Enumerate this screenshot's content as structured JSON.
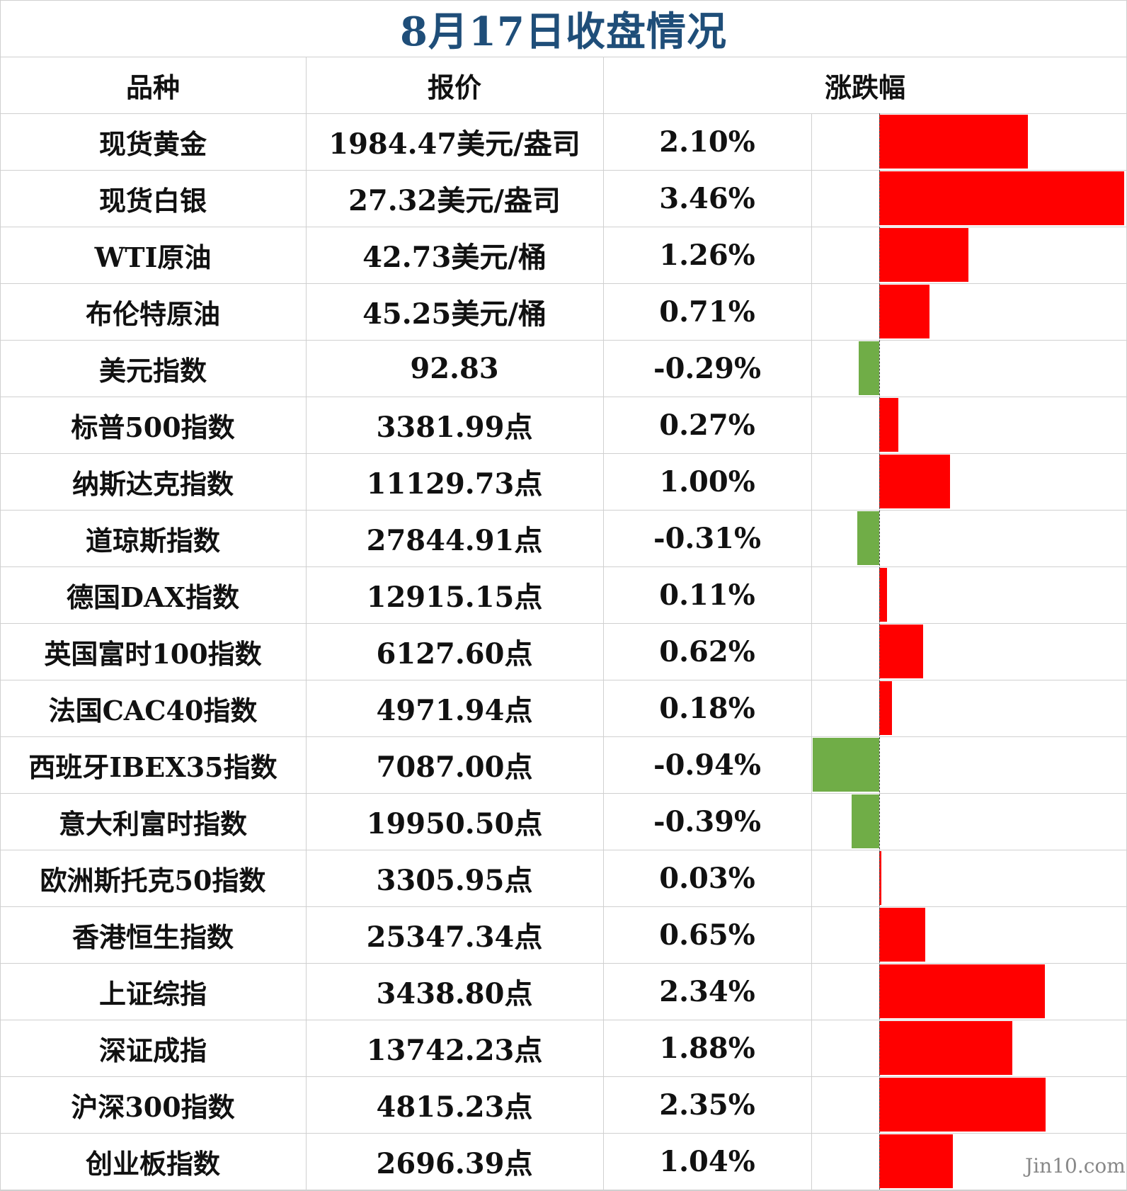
{
  "title": "8月17日收盘情况",
  "headers": {
    "variety": "品种",
    "quote": "报价",
    "change": "涨跌幅"
  },
  "colors": {
    "up": "#ff0000",
    "down": "#70ad47",
    "title": "#1f4e79"
  },
  "watermark": "Jin10.com",
  "rows": [
    {
      "name": "现货黄金",
      "quote": "1984.47美元/盎司",
      "change_text": "2.10%",
      "change": 2.1
    },
    {
      "name": "现货白银",
      "quote": "27.32美元/盎司",
      "change_text": "3.46%",
      "change": 3.46
    },
    {
      "name": "WTI原油",
      "quote": "42.73美元/桶",
      "change_text": "1.26%",
      "change": 1.26
    },
    {
      "name": "布伦特原油",
      "quote": "45.25美元/桶",
      "change_text": "0.71%",
      "change": 0.71
    },
    {
      "name": "美元指数",
      "quote": "92.83",
      "change_text": "-0.29%",
      "change": -0.29
    },
    {
      "name": "标普500指数",
      "quote": "3381.99点",
      "change_text": "0.27%",
      "change": 0.27
    },
    {
      "name": "纳斯达克指数",
      "quote": "11129.73点",
      "change_text": "1.00%",
      "change": 1.0
    },
    {
      "name": "道琼斯指数",
      "quote": "27844.91点",
      "change_text": "-0.31%",
      "change": -0.31
    },
    {
      "name": "德国DAX指数",
      "quote": "12915.15点",
      "change_text": "0.11%",
      "change": 0.11
    },
    {
      "name": "英国富时100指数",
      "quote": "6127.60点",
      "change_text": "0.62%",
      "change": 0.62
    },
    {
      "name": "法国CAC40指数",
      "quote": "4971.94点",
      "change_text": "0.18%",
      "change": 0.18
    },
    {
      "name": "西班牙IBEX35指数",
      "quote": "7087.00点",
      "change_text": "-0.94%",
      "change": -0.94
    },
    {
      "name": "意大利富时指数",
      "quote": "19950.50点",
      "change_text": "-0.39%",
      "change": -0.39
    },
    {
      "name": "欧洲斯托克50指数",
      "quote": "3305.95点",
      "change_text": "0.03%",
      "change": 0.03
    },
    {
      "name": "香港恒生指数",
      "quote": "25347.34点",
      "change_text": "0.65%",
      "change": 0.65
    },
    {
      "name": "上证综指",
      "quote": "3438.80点",
      "change_text": "2.34%",
      "change": 2.34
    },
    {
      "name": "深证成指",
      "quote": "13742.23点",
      "change_text": "1.88%",
      "change": 1.88
    },
    {
      "name": "沪深300指数",
      "quote": "4815.23点",
      "change_text": "2.35%",
      "change": 2.35
    },
    {
      "name": "创业板指数",
      "quote": "2696.39点",
      "change_text": "1.04%",
      "change": 1.04
    }
  ]
}
